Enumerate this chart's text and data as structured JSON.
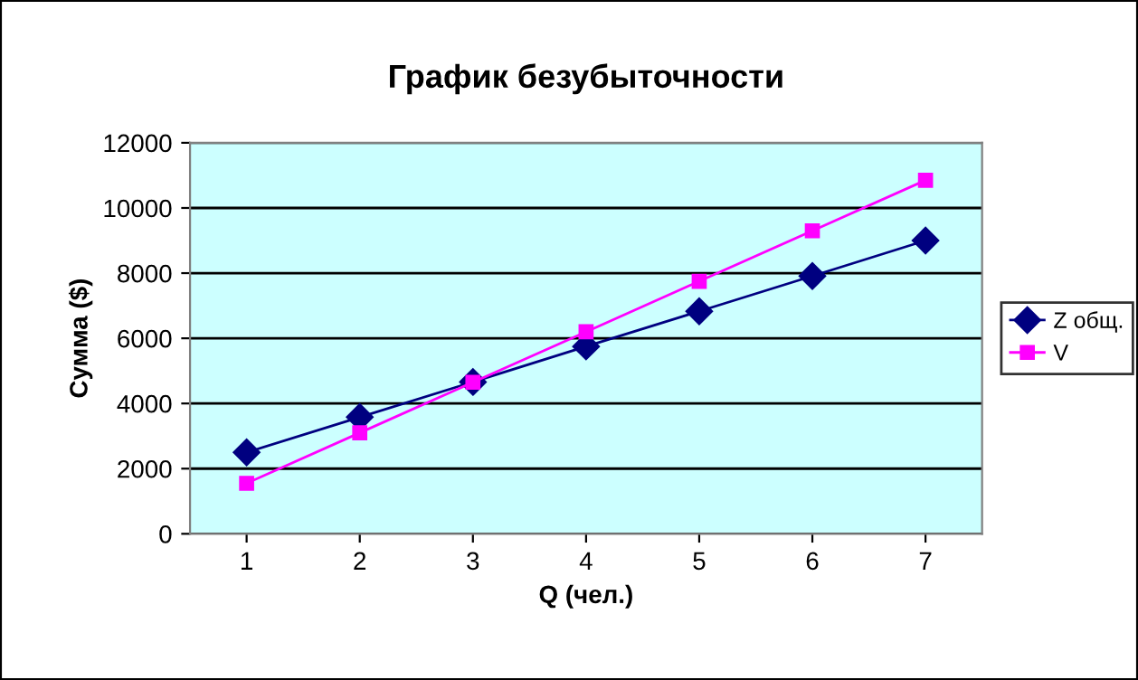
{
  "chart_data": {
    "type": "line",
    "title": "График безубыточности",
    "xlabel": "Q (чел.)",
    "ylabel": "Сумма ($)",
    "categories": [
      "1",
      "2",
      "3",
      "4",
      "5",
      "6",
      "7"
    ],
    "series": [
      {
        "name": "Z общ.",
        "color": "#000080",
        "marker": "diamond",
        "values": [
          2500,
          3580,
          4660,
          5750,
          6830,
          7910,
          9000
        ]
      },
      {
        "name": "V",
        "color": "#ff00ff",
        "marker": "square",
        "values": [
          1550,
          3100,
          4650,
          6200,
          7750,
          9300,
          10850
        ]
      }
    ],
    "ylim": [
      0,
      12000
    ],
    "yticks": [
      0,
      2000,
      4000,
      6000,
      8000,
      10000,
      12000
    ],
    "grid": "y",
    "legend": "right"
  }
}
